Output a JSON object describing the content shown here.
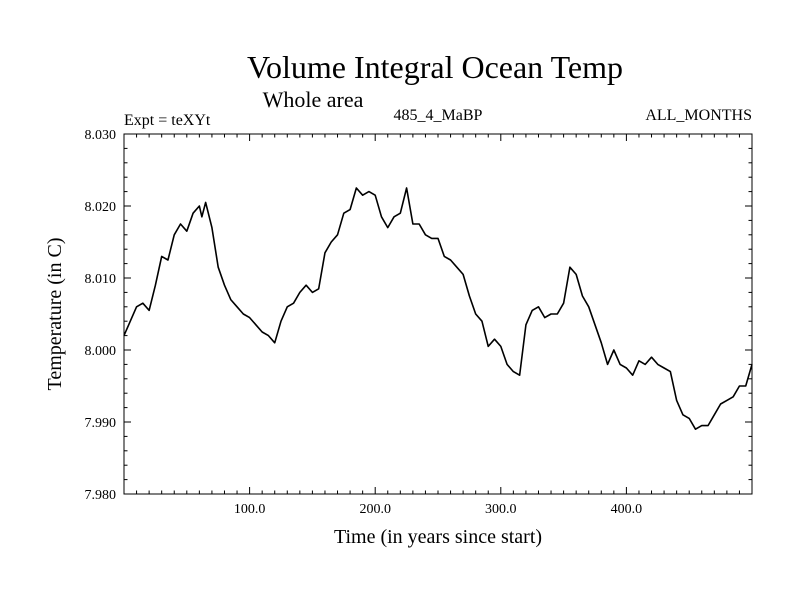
{
  "chart_data": {
    "type": "line",
    "title": "Volume Integral Ocean Temp",
    "subtitle": "Whole area",
    "annotations": {
      "left": "Expt = teXYt",
      "center": "485_4_MaBP",
      "right": "ALL_MONTHS"
    },
    "xlabel": "Time (in years since start)",
    "ylabel": "Temperature (in C)",
    "xlim": [
      0,
      500
    ],
    "ylim": [
      7.98,
      8.03
    ],
    "x_ticks": [
      100,
      200,
      300,
      400
    ],
    "x_tick_labels": [
      "100.0",
      "200.0",
      "300.0",
      "400.0"
    ],
    "y_ticks": [
      7.98,
      7.99,
      8.0,
      8.01,
      8.02,
      8.03
    ],
    "y_tick_labels": [
      "7.980",
      "7.990",
      "8.000",
      "8.010",
      "8.020",
      "8.030"
    ],
    "grid": false,
    "series": [
      {
        "name": "Volume Integral Ocean Temp",
        "color": "#000000",
        "x": [
          0,
          5,
          10,
          15,
          20,
          25,
          30,
          35,
          40,
          45,
          50,
          55,
          60,
          62,
          65,
          70,
          75,
          80,
          85,
          90,
          95,
          100,
          105,
          110,
          115,
          120,
          125,
          130,
          135,
          140,
          145,
          150,
          155,
          160,
          165,
          170,
          175,
          180,
          185,
          190,
          195,
          200,
          205,
          210,
          215,
          220,
          225,
          230,
          235,
          240,
          245,
          250,
          255,
          260,
          265,
          270,
          275,
          280,
          285,
          290,
          295,
          300,
          305,
          310,
          315,
          320,
          325,
          330,
          335,
          340,
          345,
          350,
          355,
          360,
          365,
          370,
          375,
          380,
          385,
          390,
          395,
          400,
          405,
          410,
          415,
          420,
          425,
          430,
          435,
          440,
          445,
          450,
          455,
          460,
          465,
          470,
          475,
          480,
          485,
          490,
          495,
          500
        ],
        "y": [
          8.002,
          8.004,
          8.006,
          8.0065,
          8.0055,
          8.009,
          8.013,
          8.0125,
          8.016,
          8.0175,
          8.0165,
          8.019,
          8.02,
          8.0185,
          8.0205,
          8.017,
          8.0115,
          8.009,
          8.007,
          8.006,
          8.005,
          8.0045,
          8.0035,
          8.0025,
          8.002,
          8.001,
          8.004,
          8.006,
          8.0065,
          8.008,
          8.009,
          8.008,
          8.0085,
          8.0135,
          8.015,
          8.016,
          8.019,
          8.0195,
          8.0225,
          8.0215,
          8.022,
          8.0215,
          8.0185,
          8.017,
          8.0185,
          8.019,
          8.0225,
          8.0175,
          8.0175,
          8.016,
          8.0155,
          8.0155,
          8.013,
          8.0125,
          8.0115,
          8.0105,
          8.0075,
          8.005,
          8.004,
          8.0005,
          8.0015,
          8.0005,
          7.998,
          7.997,
          7.9965,
          8.0035,
          8.0055,
          8.006,
          8.0045,
          8.005,
          8.005,
          8.0065,
          8.0115,
          8.0105,
          8.0075,
          8.006,
          8.0035,
          8.001,
          7.998,
          8.0,
          7.998,
          7.9975,
          7.9965,
          7.9985,
          7.998,
          7.999,
          7.998,
          7.9975,
          7.997,
          7.993,
          7.991,
          7.9905,
          7.989,
          7.9895,
          7.9895,
          7.991,
          7.9925,
          7.993,
          7.9935,
          7.995,
          7.995,
          7.998
        ]
      }
    ]
  }
}
